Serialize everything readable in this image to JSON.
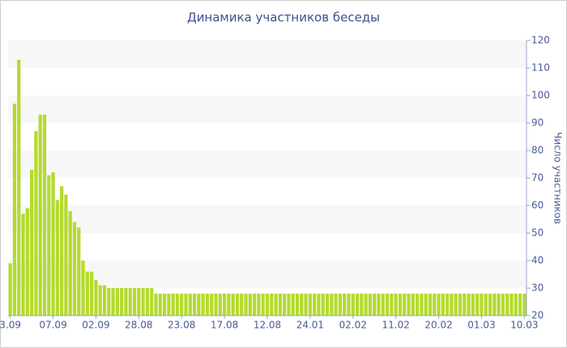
{
  "chart_data": {
    "type": "bar",
    "title": "Динамика участников беседы",
    "y_axis_label": "Число участников",
    "categories": [
      "3.09",
      null,
      null,
      null,
      null,
      null,
      null,
      null,
      null,
      null,
      "07.09",
      null,
      null,
      null,
      null,
      null,
      null,
      null,
      null,
      null,
      "02.09",
      null,
      null,
      null,
      null,
      null,
      null,
      null,
      null,
      null,
      "28.08",
      null,
      null,
      null,
      null,
      null,
      null,
      null,
      null,
      null,
      "23.08",
      null,
      null,
      null,
      null,
      null,
      null,
      null,
      null,
      null,
      "17.08",
      null,
      null,
      null,
      null,
      null,
      null,
      null,
      null,
      null,
      "12.08",
      null,
      null,
      null,
      null,
      null,
      null,
      null,
      null,
      null,
      "24.01",
      null,
      null,
      null,
      null,
      null,
      null,
      null,
      null,
      null,
      "02.02",
      null,
      null,
      null,
      null,
      null,
      null,
      null,
      null,
      null,
      "11.02",
      null,
      null,
      null,
      null,
      null,
      null,
      null,
      null,
      null,
      "20.02",
      null,
      null,
      null,
      null,
      null,
      null,
      null,
      null,
      null,
      "01.03",
      null,
      null,
      null,
      null,
      null,
      null,
      null,
      null,
      null,
      "10.03"
    ],
    "values": [
      39,
      97,
      113,
      57,
      59,
      73,
      87,
      93,
      93,
      71,
      72,
      62,
      67,
      64,
      58,
      54,
      52,
      40,
      36,
      36,
      33,
      31,
      31,
      30,
      30,
      30,
      30,
      30,
      30,
      30,
      30,
      30,
      30,
      30,
      28,
      28,
      28,
      28,
      28,
      28,
      28,
      28,
      28,
      28,
      28,
      28,
      28,
      28,
      28,
      28,
      28,
      28,
      28,
      28,
      28,
      28,
      28,
      28,
      28,
      28,
      28,
      28,
      28,
      28,
      28,
      28,
      28,
      28,
      28,
      28,
      28,
      28,
      28,
      28,
      28,
      28,
      28,
      28,
      28,
      28,
      28,
      28,
      28,
      28,
      28,
      28,
      28,
      28,
      28,
      28,
      28,
      28,
      28,
      28,
      28,
      28,
      28,
      28,
      28,
      28,
      28,
      28,
      28,
      28,
      28,
      28,
      28,
      28,
      28,
      28,
      28,
      28,
      28,
      28,
      28,
      28,
      28,
      28,
      28,
      28,
      28
    ],
    "color": "#b4da2e",
    "ylim": [
      20,
      120
    ],
    "yticks": [
      20,
      30,
      40,
      50,
      60,
      70,
      80,
      90,
      100,
      110,
      120
    ],
    "grid": "bands",
    "y_axis_side": "right"
  }
}
